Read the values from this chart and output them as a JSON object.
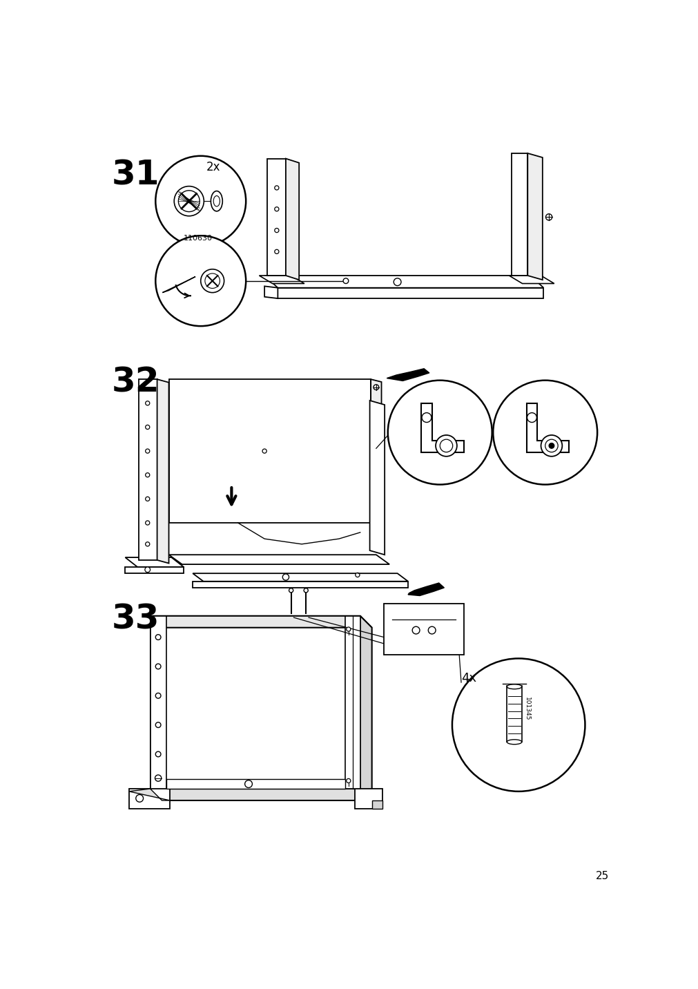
{
  "page_number": "25",
  "bg": "#ffffff",
  "lc": "#000000",
  "step31_label": "31",
  "step32_label": "32",
  "step33_label": "33",
  "part_110630": "110630",
  "qty_2x": "2x",
  "qty_4x": "4x",
  "part_101345": "101345"
}
